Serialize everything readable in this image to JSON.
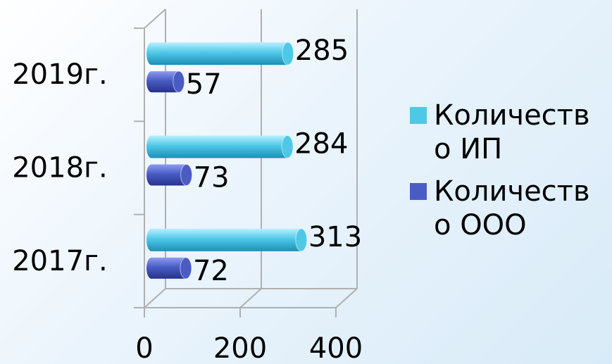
{
  "chart_data": {
    "type": "bar",
    "orientation": "horizontal",
    "categories": [
      "2017г.",
      "2018г.",
      "2019г."
    ],
    "series": [
      {
        "name": "Количество ИП",
        "color": "#4fc8e8",
        "values": [
          313,
          284,
          285
        ]
      },
      {
        "name": "Количество ООО",
        "color": "#4a5cc4",
        "values": [
          72,
          73,
          57
        ]
      }
    ],
    "xlim": [
      0,
      400
    ],
    "xticks": [
      0,
      200,
      400
    ],
    "grid": true,
    "legend": "right"
  }
}
